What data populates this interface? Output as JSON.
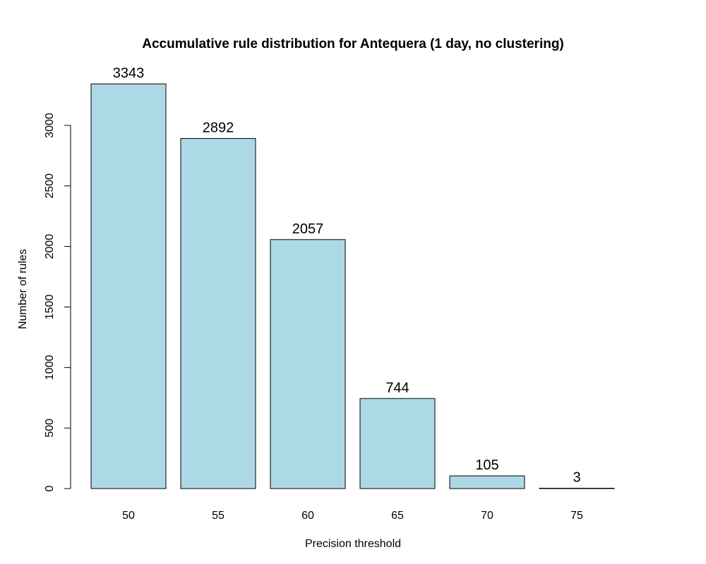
{
  "chart_data": {
    "type": "bar",
    "title": "Accumulative rule distribution for Antequera (1  day, no clustering)",
    "xlabel": "Precision threshold",
    "ylabel": "Number of rules",
    "categories": [
      "50",
      "55",
      "60",
      "65",
      "70",
      "75"
    ],
    "values": [
      3343,
      2892,
      2057,
      744,
      105,
      3
    ],
    "data_labels": [
      "3343",
      "2892",
      "2057",
      "744",
      "105",
      "3"
    ],
    "yticks": [
      0,
      500,
      1000,
      1500,
      2000,
      2500,
      3000
    ],
    "ylim": [
      0,
      3343
    ],
    "bar_color": "#add8e6",
    "grid": false,
    "legend": "none"
  }
}
